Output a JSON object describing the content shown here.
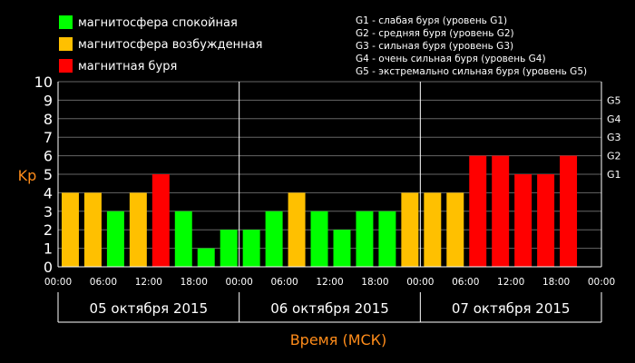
{
  "chart_data": {
    "type": "bar",
    "ylabel": "Kp",
    "xlabel": "Время (МСК)",
    "ylim": [
      0,
      10
    ],
    "yticks": [
      0,
      1,
      2,
      3,
      4,
      5,
      6,
      7,
      8,
      9,
      10
    ],
    "storm_levels": [
      {
        "label": "G1",
        "kp": 5
      },
      {
        "label": "G2",
        "kp": 6
      },
      {
        "label": "G3",
        "kp": 7
      },
      {
        "label": "G4",
        "kp": 8
      },
      {
        "label": "G5",
        "kp": 9
      }
    ],
    "time_ticks": [
      "00:00",
      "06:00",
      "12:00",
      "18:00",
      "00:00",
      "06:00",
      "12:00",
      "18:00",
      "00:00",
      "06:00",
      "12:00",
      "18:00",
      "00:00"
    ],
    "days": [
      "05 октября 2015",
      "06 октября 2015",
      "07 октября 2015"
    ],
    "grid": "horizontal",
    "values": [
      4,
      4,
      3,
      4,
      5,
      3,
      1,
      2,
      2,
      3,
      4,
      3,
      2,
      3,
      3,
      4,
      4,
      4,
      6,
      6,
      5,
      5,
      6
    ],
    "colors": {
      "quiet": "#00ff00",
      "active": "#ffc000",
      "storm": "#ff0000",
      "grid": "#666666",
      "axis_label": "#ff8c1a"
    }
  },
  "legend": [
    {
      "label": "магнитосфера спокойная",
      "color": "#00ff00"
    },
    {
      "label": "магнитосфера возбужденная",
      "color": "#ffc000"
    },
    {
      "label": "магнитная буря",
      "color": "#ff0000"
    }
  ],
  "g_legend": [
    "G1 - слабая буря (уровень G1)",
    "G2 - средняя буря (уровень G2)",
    "G3 - сильная буря (уровень G3)",
    "G4 - очень сильная буря (уровень G4)",
    "G5 - экстремально сильная буря (уровень G5)"
  ]
}
